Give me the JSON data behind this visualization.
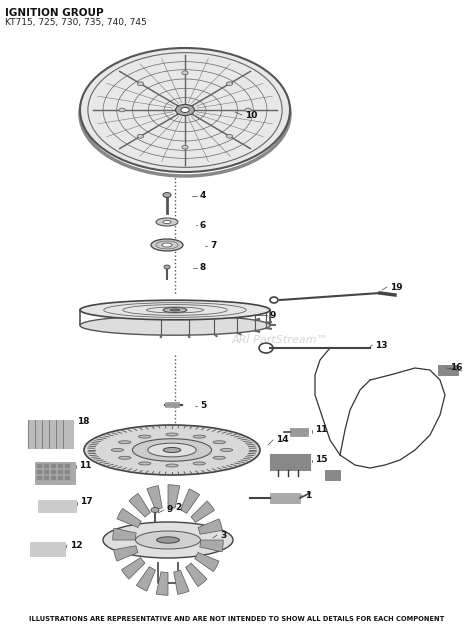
{
  "title_line1": "IGNITION GROUP",
  "title_line2": "KT715, 725, 730, 735, 740, 745",
  "footer": "ILLUSTRATIONS ARE REPRESENTATIVE AND ARE NOT INTENDED TO SHOW ALL DETAILS FOR EACH COMPONENT",
  "watermark": "ARI PartStream™",
  "bg_color": "#ffffff",
  "fig_width": 4.74,
  "fig_height": 6.29,
  "dpi": 100
}
